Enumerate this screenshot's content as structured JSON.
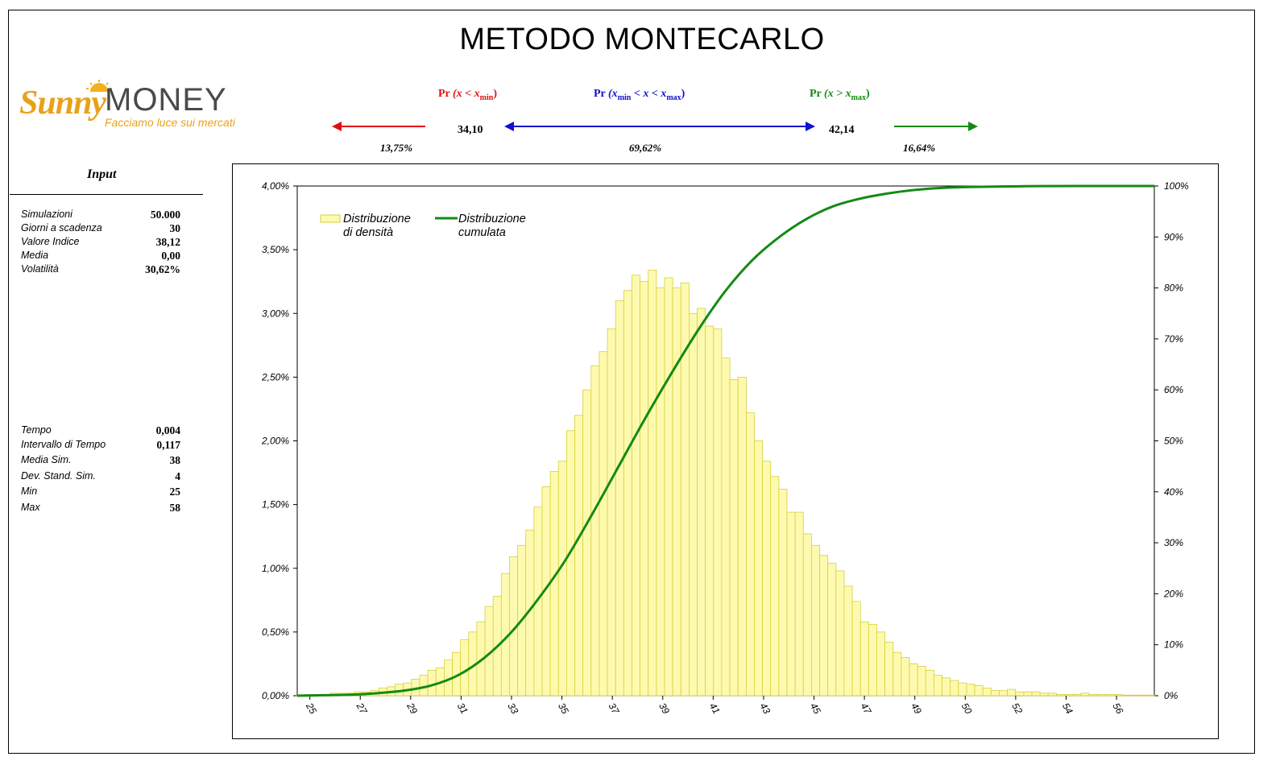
{
  "title": "METODO MONTECARLO",
  "logo": {
    "brand_script": "Sunny",
    "brand_main": "MONEY",
    "tagline": "Facciamo luce sui mercati"
  },
  "probabilities": {
    "left": {
      "label_pr": "Pr",
      "label_expr": "(x < x",
      "label_sub": "min",
      "label_close": ")",
      "color": "#e01010",
      "percent": "13,75%"
    },
    "middle": {
      "label_pr": "Pr",
      "label_expr1": "(x",
      "label_sub1": "min",
      "label_expr2": " < x < x",
      "label_sub2": "max",
      "label_close": ")",
      "color": "#1010d0",
      "percent": "69,62%"
    },
    "right": {
      "label_pr": "Pr",
      "label_expr": "(x > x",
      "label_sub": "max",
      "label_close": ")",
      "color": "#138a13",
      "percent": "16,64%"
    },
    "xmin_value": "34,10",
    "xmax_value": "42,14"
  },
  "input": {
    "title": "Input",
    "params": [
      {
        "label": "Simulazioni",
        "value": "50.000"
      },
      {
        "label": "Giorni a scadenza",
        "value": "30"
      },
      {
        "label": "Valore Indice",
        "value": "38,12"
      },
      {
        "label": "Media",
        "value": "0,00"
      },
      {
        "label": "Volatilità",
        "value": "30,62%"
      }
    ],
    "results": [
      {
        "label": "Tempo",
        "value": "0,004"
      },
      {
        "label": "Intervallo di Tempo",
        "value": "0,117"
      },
      {
        "label": "Media Sim.",
        "value": "38"
      },
      {
        "label": "Dev. Stand. Sim.",
        "value": "4"
      },
      {
        "label": "Min",
        "value": "25"
      },
      {
        "label": "Max",
        "value": "58"
      }
    ]
  },
  "chart_data": {
    "type": "bar",
    "title": "",
    "xlabel": "",
    "ylabel": "",
    "x_range": [
      25,
      57
    ],
    "ylim": [
      0,
      0.04
    ],
    "y2lim": [
      0,
      1
    ],
    "y_ticks": [
      "0,00%",
      "0,50%",
      "1,00%",
      "1,50%",
      "2,00%",
      "2,50%",
      "3,00%",
      "3,50%",
      "4,00%"
    ],
    "y2_ticks": [
      "0%",
      "10%",
      "20%",
      "30%",
      "40%",
      "50%",
      "60%",
      "70%",
      "80%",
      "90%",
      "100%"
    ],
    "x_tick_labels": [
      "25",
      "27",
      "29",
      "31",
      "33",
      "35",
      "37",
      "39",
      "41",
      "43",
      "45",
      "47",
      "49",
      "50",
      "52",
      "54",
      "56"
    ],
    "legend": [
      "Distribuzione di densità",
      "Distribuzione cumulata"
    ],
    "legend_position": "top-left",
    "colors": {
      "bars_fill": "#fdfab0",
      "bars_stroke": "#d8cf3a",
      "cumulative": "#138a13"
    },
    "series": [
      {
        "name": "Distribuzione di densità",
        "values": [
          5e-05,
          0.0001,
          0.0001,
          0.0001,
          0.0002,
          0.0002,
          0.0002,
          0.0003,
          0.0003,
          0.0004,
          0.0006,
          0.0007,
          0.0009,
          0.001,
          0.0013,
          0.0016,
          0.002,
          0.0022,
          0.0028,
          0.0034,
          0.0044,
          0.005,
          0.0058,
          0.007,
          0.0078,
          0.0096,
          0.0109,
          0.0118,
          0.013,
          0.0148,
          0.0164,
          0.0176,
          0.0184,
          0.0208,
          0.022,
          0.024,
          0.0259,
          0.027,
          0.0288,
          0.031,
          0.0318,
          0.033,
          0.0325,
          0.0334,
          0.032,
          0.0328,
          0.032,
          0.0324,
          0.03,
          0.0304,
          0.029,
          0.0288,
          0.0265,
          0.0248,
          0.025,
          0.0222,
          0.02,
          0.0184,
          0.0172,
          0.0162,
          0.0144,
          0.0144,
          0.0127,
          0.0118,
          0.011,
          0.0104,
          0.0098,
          0.0086,
          0.0074,
          0.0058,
          0.0056,
          0.005,
          0.0042,
          0.0034,
          0.003,
          0.0025,
          0.0023,
          0.002,
          0.0016,
          0.0014,
          0.0012,
          0.001,
          0.0009,
          0.0008,
          0.0006,
          0.0004,
          0.0004,
          0.0005,
          0.0003,
          0.0003,
          0.0003,
          0.0002,
          0.0002,
          0.0001,
          0.0001,
          0.0001,
          0.0002,
          0.0001,
          0.0001,
          0.0001,
          0.0001,
          5e-05,
          5e-05,
          5e-05,
          5e-05
        ]
      },
      {
        "name": "Distribuzione cumulata",
        "points": [
          [
            25,
            0
          ],
          [
            26,
            0.001
          ],
          [
            27,
            0.002
          ],
          [
            28,
            0.005
          ],
          [
            29,
            0.01
          ],
          [
            30,
            0.02
          ],
          [
            31,
            0.04
          ],
          [
            32,
            0.075
          ],
          [
            33,
            0.125
          ],
          [
            34,
            0.19
          ],
          [
            35,
            0.265
          ],
          [
            36,
            0.355
          ],
          [
            37,
            0.45
          ],
          [
            38,
            0.545
          ],
          [
            39,
            0.635
          ],
          [
            40,
            0.72
          ],
          [
            41,
            0.795
          ],
          [
            42,
            0.855
          ],
          [
            43,
            0.9
          ],
          [
            44,
            0.935
          ],
          [
            45,
            0.96
          ],
          [
            46,
            0.975
          ],
          [
            47,
            0.985
          ],
          [
            48,
            0.992
          ],
          [
            49,
            0.996
          ],
          [
            50,
            0.998
          ],
          [
            52,
            0.9995
          ],
          [
            54,
            1
          ],
          [
            57,
            1
          ]
        ]
      }
    ]
  }
}
